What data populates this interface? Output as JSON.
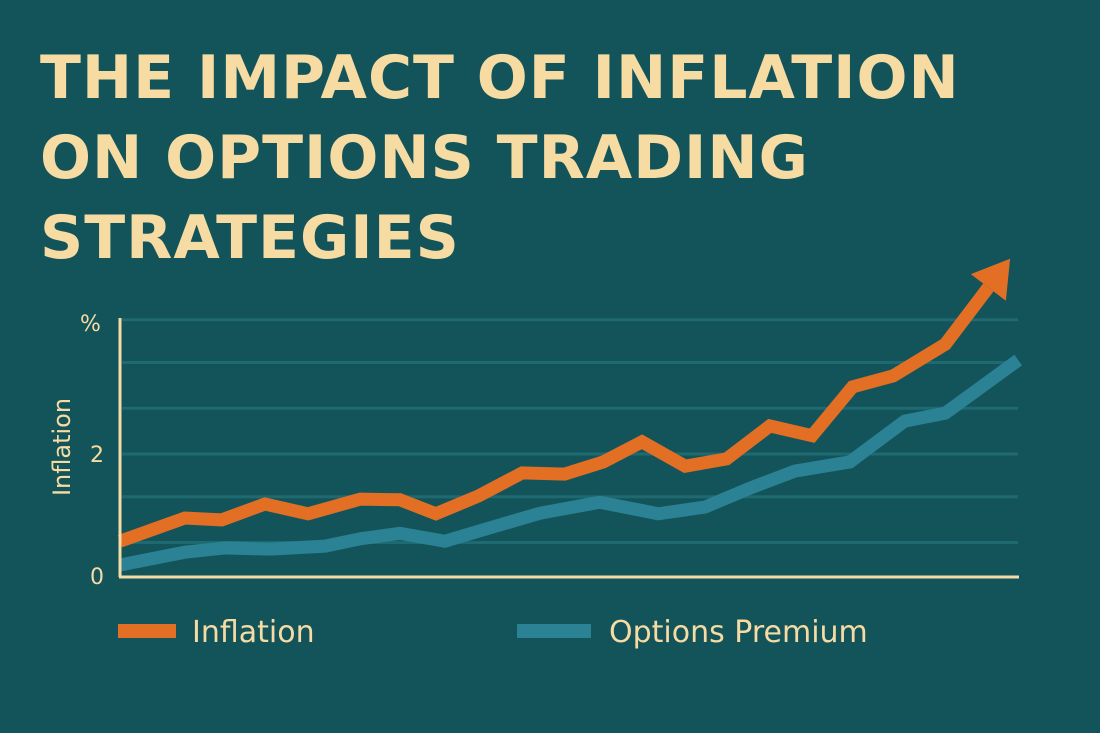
{
  "chart_data": {
    "type": "line",
    "title": [
      "THE IMPACT OF INFLATION",
      "ON OPTIONS TRADING",
      "STRATEGIES"
    ],
    "ylabel": "Inflation",
    "yunit_label": "%",
    "xlabel": "",
    "ylim": [
      0,
      4.2
    ],
    "xlim": [
      0,
      10
    ],
    "yticks": [
      {
        "value": 0,
        "label": "0"
      },
      {
        "value": 2,
        "label": "2"
      }
    ],
    "gridlines": [
      0.55,
      1.3,
      2.0,
      2.75,
      3.5,
      4.2
    ],
    "grid": true,
    "legend_position": "bottom",
    "colors": {
      "background": "#13545b",
      "text": "#f6dba3",
      "axis": "#f3dca6",
      "grid": "#1f6a70"
    },
    "series": [
      {
        "name": "Inflation",
        "color": "#e36f24",
        "arrow_end": true,
        "x": [
          0,
          0.72,
          1.13,
          1.61,
          2.09,
          2.67,
          3.11,
          3.51,
          3.98,
          4.47,
          4.94,
          5.37,
          5.8,
          6.28,
          6.74,
          7.22,
          7.69,
          8.14,
          8.59,
          9.17,
          9.89
        ],
        "y": [
          0.57,
          0.95,
          0.92,
          1.18,
          1.02,
          1.26,
          1.25,
          1.02,
          1.31,
          1.69,
          1.67,
          1.87,
          2.2,
          1.8,
          1.92,
          2.46,
          2.3,
          3.1,
          3.28,
          3.8,
          5.2
        ]
      },
      {
        "name": "Options Premium",
        "color": "#2a8294",
        "x": [
          0,
          0.72,
          1.17,
          1.67,
          2.28,
          2.67,
          3.11,
          3.61,
          4.11,
          4.67,
          5.33,
          5.98,
          6.5,
          7.0,
          7.5,
          8.11,
          8.72,
          9.17,
          9.98
        ],
        "y": [
          0.18,
          0.39,
          0.46,
          0.44,
          0.49,
          0.61,
          0.7,
          0.57,
          0.79,
          1.03,
          1.21,
          1.02,
          1.13,
          1.44,
          1.72,
          1.87,
          2.54,
          2.67,
          3.54
        ]
      }
    ]
  }
}
